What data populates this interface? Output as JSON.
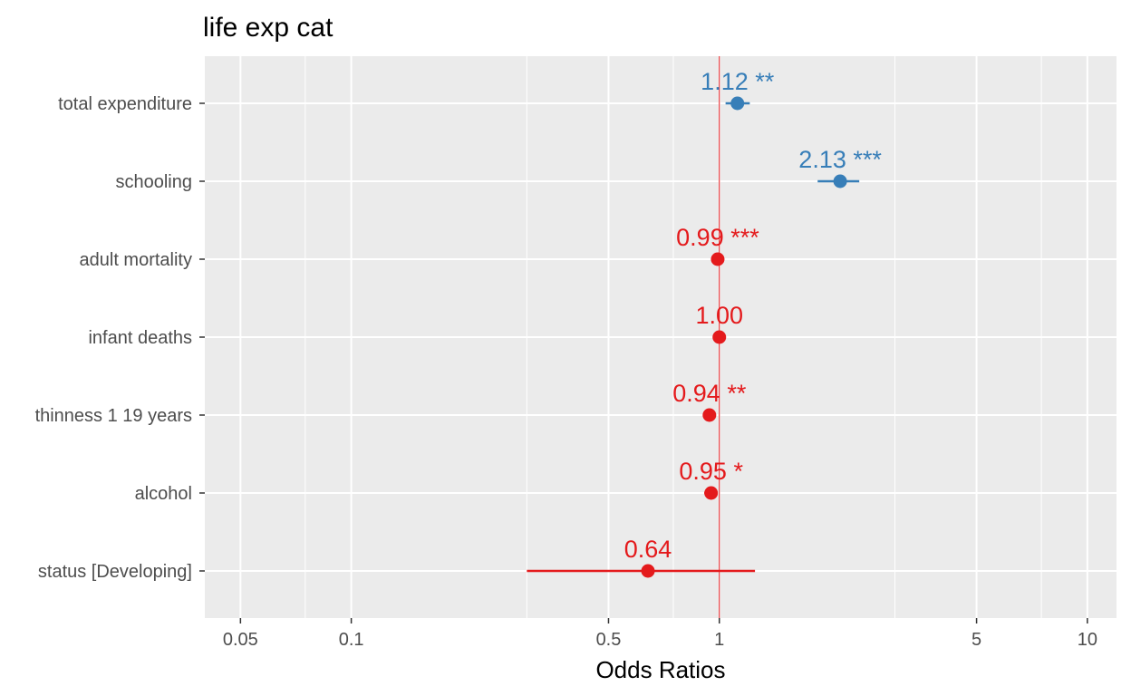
{
  "chart_data": {
    "type": "forest",
    "title": "life exp cat",
    "xlabel": "Odds Ratios",
    "ylabel": "",
    "x_scale": "log",
    "xlim": [
      0.04,
      12
    ],
    "x_ticks": [
      {
        "value": 0.05,
        "label": "0.05"
      },
      {
        "value": 0.1,
        "label": "0.1"
      },
      {
        "value": 0.5,
        "label": "0.5"
      },
      {
        "value": 1,
        "label": "1"
      },
      {
        "value": 5,
        "label": "5"
      },
      {
        "value": 10,
        "label": "10"
      }
    ],
    "minor_gridlines": [
      0.075,
      0.3,
      0.75,
      3,
      7.5
    ],
    "reference_line": 1,
    "grid": true,
    "terms": [
      {
        "label": "total expenditure",
        "estimate": 1.12,
        "ci": [
          1.04,
          1.21
        ],
        "text": "1.12 **",
        "direction": "positive"
      },
      {
        "label": "schooling",
        "estimate": 2.13,
        "ci": [
          1.85,
          2.4
        ],
        "text": "2.13 ***",
        "direction": "positive"
      },
      {
        "label": "adult mortality",
        "estimate": 0.99,
        "ci": [
          0.985,
          0.995
        ],
        "text": "0.99 ***",
        "direction": "negative"
      },
      {
        "label": "infant deaths",
        "estimate": 1.0,
        "ci": [
          0.995,
          1.005
        ],
        "text": "1.00",
        "direction": "negative"
      },
      {
        "label": "thinness 1 19 years",
        "estimate": 0.94,
        "ci": [
          0.91,
          0.97
        ],
        "text": "0.94 **",
        "direction": "negative"
      },
      {
        "label": "alcohol",
        "estimate": 0.95,
        "ci": [
          0.91,
          0.99
        ],
        "text": "0.95 *",
        "direction": "negative"
      },
      {
        "label": "status [Developing]",
        "estimate": 0.64,
        "ci": [
          0.3,
          1.25
        ],
        "text": "0.64",
        "direction": "negative"
      }
    ],
    "colors": {
      "positive": "#377eb8",
      "negative": "#e41a1c",
      "panel": "#ebebeb",
      "grid": "#ffffff",
      "reference": "#e41a1c"
    }
  }
}
